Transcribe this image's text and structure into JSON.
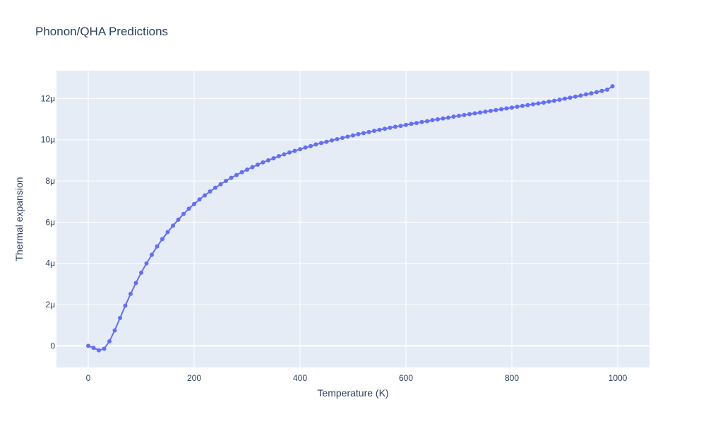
{
  "chart_data": {
    "type": "line",
    "title": "Phonon/QHA Predictions",
    "xlabel": "Temperature (K)",
    "ylabel": "Thermal expansion",
    "xlim": [
      -60,
      1060
    ],
    "ylim": [
      -1.05,
      13.35
    ],
    "x_ticks": [
      0,
      200,
      400,
      600,
      800,
      1000
    ],
    "x_tick_labels": [
      "0",
      "200",
      "400",
      "600",
      "800",
      "1000"
    ],
    "y_ticks": [
      0,
      2,
      4,
      6,
      8,
      10,
      12
    ],
    "y_tick_labels": [
      "0",
      "2μ",
      "4μ",
      "6μ",
      "8μ",
      "10μ",
      "12μ"
    ],
    "y_unit_scale": "1e-6",
    "grid": true,
    "legend": "none",
    "colors": {
      "line": "#636efa",
      "plot_bg": "#e5ecf6",
      "grid": "#ffffff",
      "text": "#2a3f5f"
    },
    "series": [
      {
        "mode": "lines+markers",
        "x": [
          0,
          10,
          20,
          30,
          40,
          50,
          60,
          70,
          80,
          90,
          100,
          110,
          120,
          130,
          140,
          150,
          160,
          170,
          180,
          190,
          200,
          210,
          220,
          230,
          240,
          250,
          260,
          270,
          280,
          290,
          300,
          310,
          320,
          330,
          340,
          350,
          360,
          370,
          380,
          390,
          400,
          410,
          420,
          430,
          440,
          450,
          460,
          470,
          480,
          490,
          500,
          510,
          520,
          530,
          540,
          550,
          560,
          570,
          580,
          590,
          600,
          610,
          620,
          630,
          640,
          650,
          660,
          670,
          680,
          690,
          700,
          710,
          720,
          730,
          740,
          750,
          760,
          770,
          780,
          790,
          800,
          810,
          820,
          830,
          840,
          850,
          860,
          870,
          880,
          890,
          900,
          910,
          920,
          930,
          940,
          950,
          960,
          970,
          980,
          990
        ],
        "y": [
          0,
          -0.1,
          -0.22,
          -0.14,
          0.22,
          0.75,
          1.35,
          1.95,
          2.52,
          3.05,
          3.55,
          4.0,
          4.42,
          4.82,
          5.18,
          5.52,
          5.83,
          6.12,
          6.4,
          6.65,
          6.88,
          7.1,
          7.3,
          7.49,
          7.67,
          7.84,
          8.0,
          8.15,
          8.29,
          8.42,
          8.55,
          8.67,
          8.79,
          8.9,
          9.0,
          9.1,
          9.2,
          9.29,
          9.38,
          9.46,
          9.54,
          9.62,
          9.69,
          9.77,
          9.84,
          9.9,
          9.97,
          10.03,
          10.09,
          10.15,
          10.21,
          10.27,
          10.32,
          10.37,
          10.43,
          10.48,
          10.53,
          10.58,
          10.63,
          10.67,
          10.72,
          10.77,
          10.81,
          10.86,
          10.9,
          10.95,
          10.99,
          11.03,
          11.07,
          11.12,
          11.16,
          11.2,
          11.24,
          11.28,
          11.32,
          11.36,
          11.4,
          11.44,
          11.48,
          11.52,
          11.56,
          11.6,
          11.64,
          11.68,
          11.72,
          11.76,
          11.8,
          11.85,
          11.89,
          11.94,
          11.99,
          12.04,
          12.09,
          12.14,
          12.2,
          12.25,
          12.31,
          12.37,
          12.43,
          12.59
        ]
      }
    ]
  }
}
